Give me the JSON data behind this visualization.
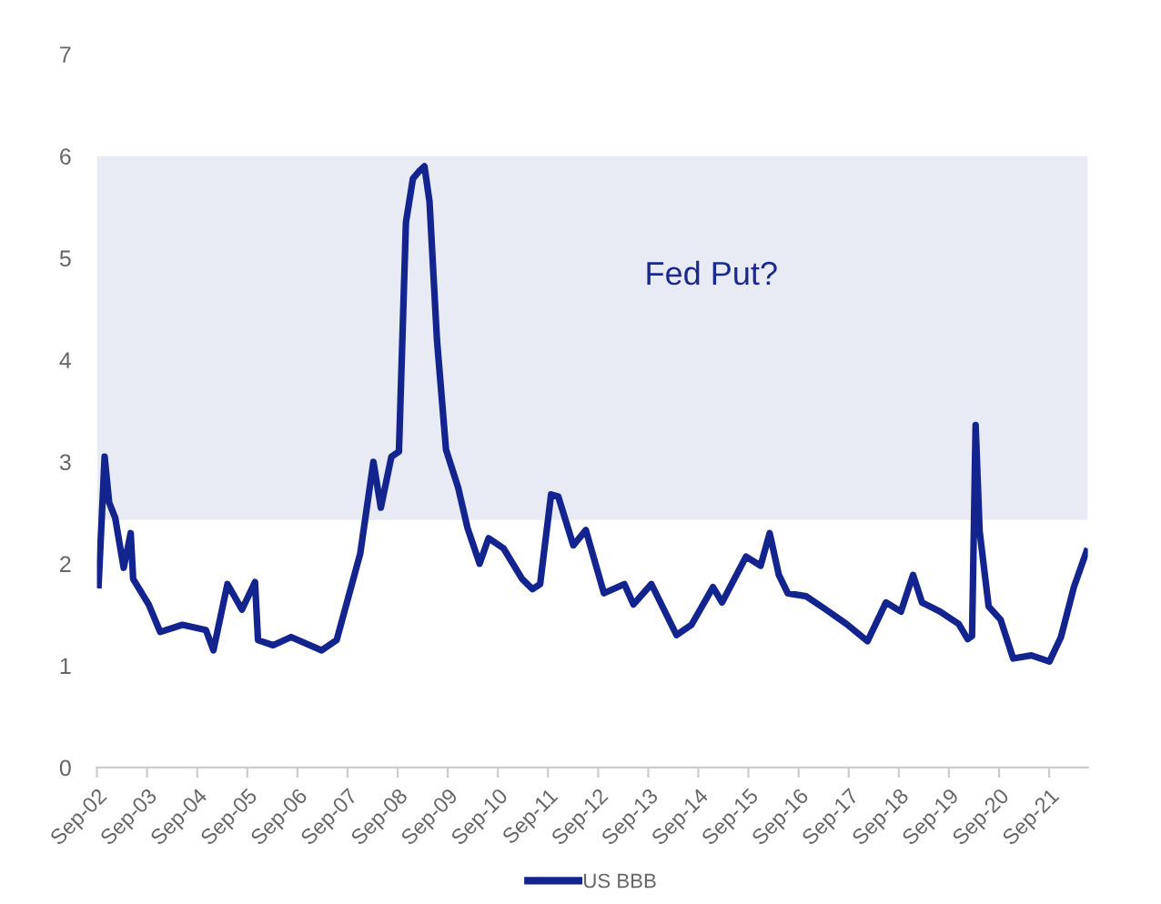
{
  "chart_data": {
    "type": "line",
    "x": [
      "2002-09-13",
      "2002-10-27",
      "2002-11-29",
      "2003-01-12",
      "2003-03-15",
      "2003-05-05",
      "2003-05-23",
      "2003-09-13",
      "2003-12-06",
      "2004-05-16",
      "2004-11-03",
      "2004-12-28",
      "2005-04-09",
      "2005-07-24",
      "2005-10-27",
      "2005-11-18",
      "2006-03-08",
      "2006-07-17",
      "2007-02-25",
      "2007-06-14",
      "2007-09-13",
      "2007-12-03",
      "2008-03-08",
      "2008-05-01",
      "2008-07-17",
      "2008-09-10",
      "2008-10-31",
      "2008-12-21",
      "2009-02-03",
      "2009-03-15",
      "2009-04-21",
      "2009-06-14",
      "2009-08-19",
      "2009-11-15",
      "2010-01-23",
      "2010-04-21",
      "2010-06-25",
      "2010-10-13",
      "2011-02-25",
      "2011-05-12",
      "2011-07-06",
      "2011-09-24",
      "2011-11-15",
      "2012-03-04",
      "2012-06-03",
      "2012-10-13",
      "2013-03-11",
      "2013-05-16",
      "2013-09-24",
      "2014-03-26",
      "2014-07-13",
      "2014-12-17",
      "2015-02-21",
      "2015-08-15",
      "2015-11-29",
      "2016-02-03",
      "2016-04-10",
      "2016-06-14",
      "2016-10-27",
      "2017-03-08",
      "2017-08-15",
      "2018-01-16",
      "2018-05-31",
      "2018-09-17",
      "2018-12-14",
      "2019-02-17",
      "2019-06-29",
      "2019-11-11",
      "2020-01-16",
      "2020-02-17",
      "2020-03-14",
      "2020-04-12",
      "2020-06-17",
      "2020-09-12",
      "2020-12-13",
      "2021-04-24",
      "2021-09-03",
      "2021-11-26",
      "2022-02-28",
      "2022-05-31"
    ],
    "series": [
      {
        "name": "US BBB",
        "color": "#14248f",
        "values": [
          1.79,
          3.05,
          2.6,
          2.45,
          1.96,
          2.3,
          1.85,
          1.6,
          1.33,
          1.4,
          1.35,
          1.15,
          1.8,
          1.55,
          1.82,
          1.25,
          1.2,
          1.28,
          1.15,
          1.25,
          1.7,
          2.1,
          3.0,
          2.55,
          3.05,
          3.1,
          5.35,
          5.78,
          5.85,
          5.9,
          5.55,
          4.2,
          3.12,
          2.75,
          2.35,
          2.0,
          2.25,
          2.15,
          1.85,
          1.75,
          1.8,
          2.68,
          2.66,
          2.18,
          2.33,
          1.71,
          1.8,
          1.6,
          1.8,
          1.3,
          1.4,
          1.77,
          1.62,
          2.07,
          1.98,
          2.3,
          1.89,
          1.71,
          1.68,
          1.56,
          1.41,
          1.24,
          1.62,
          1.53,
          1.89,
          1.62,
          1.53,
          1.41,
          1.26,
          1.29,
          3.36,
          2.32,
          1.58,
          1.45,
          1.07,
          1.1,
          1.04,
          1.28,
          1.77,
          2.12
        ]
      }
    ],
    "xlim": [
      "2002-09-01",
      "2022-06-10"
    ],
    "xticks": [
      {
        "value": "2002-09-01",
        "label": "Sep-02"
      },
      {
        "value": "2003-09-01",
        "label": "Sep-03"
      },
      {
        "value": "2004-09-01",
        "label": "Sep-04"
      },
      {
        "value": "2005-09-01",
        "label": "Sep-05"
      },
      {
        "value": "2006-09-01",
        "label": "Sep-06"
      },
      {
        "value": "2007-09-01",
        "label": "Sep-07"
      },
      {
        "value": "2008-09-01",
        "label": "Sep-08"
      },
      {
        "value": "2009-09-01",
        "label": "Sep-09"
      },
      {
        "value": "2010-09-01",
        "label": "Sep-10"
      },
      {
        "value": "2011-09-01",
        "label": "Sep-11"
      },
      {
        "value": "2012-09-01",
        "label": "Sep-12"
      },
      {
        "value": "2013-09-01",
        "label": "Sep-13"
      },
      {
        "value": "2014-09-01",
        "label": "Sep-14"
      },
      {
        "value": "2015-09-01",
        "label": "Sep-15"
      },
      {
        "value": "2016-09-01",
        "label": "Sep-16"
      },
      {
        "value": "2017-09-01",
        "label": "Sep-17"
      },
      {
        "value": "2018-09-01",
        "label": "Sep-18"
      },
      {
        "value": "2019-09-01",
        "label": "Sep-19"
      },
      {
        "value": "2020-09-01",
        "label": "Sep-20"
      },
      {
        "value": "2021-09-01",
        "label": "Sep-21"
      }
    ],
    "ylim": [
      0,
      7
    ],
    "yticks": [
      0,
      1,
      2,
      3,
      4,
      5,
      6,
      7
    ],
    "bands": [
      {
        "axis": "y",
        "from": 2.43,
        "to": 6,
        "label": "Fed Put?",
        "color": "#e8eaf4"
      }
    ],
    "grid": false,
    "legend": "bottom",
    "marker": "none",
    "line_style": "solid"
  }
}
